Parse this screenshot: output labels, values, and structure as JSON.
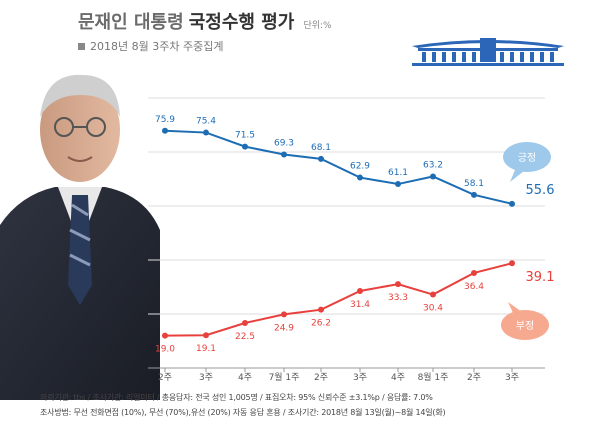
{
  "header": {
    "title_part1": "문재인 대통령",
    "title_part2": "국정수행 평가",
    "unit": "단위:%",
    "subtitle": "2018년 8월 3주차 주중집계"
  },
  "colors": {
    "positive": "#1d6db5",
    "negative": "#e8403c",
    "grid": "#dddddd",
    "axis": "#999999"
  },
  "chart_data": {
    "type": "line",
    "categories": [
      "2주",
      "3주",
      "4주",
      "7월 1주",
      "2주",
      "3주",
      "4주",
      "8월 1주",
      "2주",
      "3주"
    ],
    "series": [
      {
        "name": "긍정",
        "values": [
          75.9,
          75.4,
          71.5,
          69.3,
          68.1,
          62.9,
          61.1,
          63.2,
          58.1,
          55.6
        ],
        "labels": [
          "75.9",
          "75.4",
          "71.5",
          "69.3",
          "68.1",
          "62.9",
          "61.1",
          "63.2",
          "58.1",
          "55.6"
        ]
      },
      {
        "name": "부정",
        "values": [
          19.0,
          19.1,
          22.5,
          24.9,
          26.2,
          31.4,
          33.3,
          30.4,
          36.4,
          39.1
        ],
        "labels": [
          "19.0",
          "19.1",
          "22.5",
          "24.9",
          "26.2",
          "31.4",
          "33.3",
          "30.4",
          "36.4",
          "39.1"
        ]
      }
    ],
    "ylim": [
      10,
      85
    ],
    "legend": "bubbles at right end of lines"
  },
  "footer": {
    "line1": "의뢰기관: tbs / 조사기관: 리얼미터 / 총응답자: 전국 성인 1,005명 / 표집오차: 95% 신뢰수준 ±3.1%p / 응답률: 7.0%",
    "line2": "조사방법: 무선 전화면접 (10%), 무선 (70%),유선 (20%) 자동 응답 혼용 / 조사기간: 2018년 8월 13일(월)~8월 14일(화)"
  }
}
